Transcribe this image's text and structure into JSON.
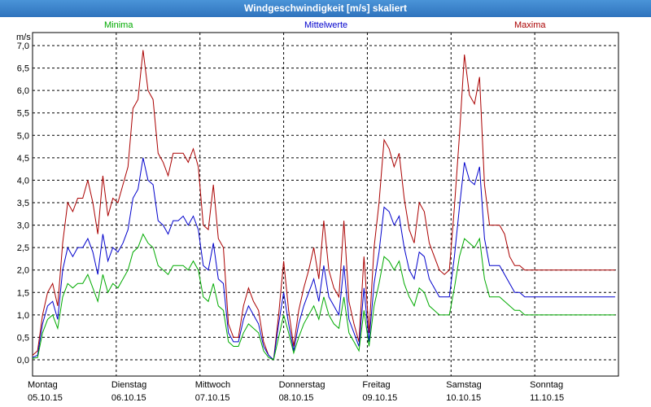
{
  "title": "Windgeschwindigkeit [m/s] skaliert",
  "legend": [
    {
      "label": "Minima",
      "color": "#00aa00"
    },
    {
      "label": "Mittelwerte",
      "color": "#0000cc"
    },
    {
      "label": "Maxima",
      "color": "#aa0000"
    }
  ],
  "colors": {
    "titlebar": "#3a82c9",
    "grid": "#000000"
  },
  "chart_data": {
    "type": "line",
    "ylabel": "m/s",
    "ylim": [
      0,
      7.0
    ],
    "yticks": [
      "0,0",
      "0,5",
      "1,0",
      "1,5",
      "2,0",
      "2,5",
      "3,0",
      "3,5",
      "4,0",
      "4,5",
      "5,0",
      "5,5",
      "6,0",
      "6,5",
      "7,0"
    ],
    "xlim": [
      0,
      7
    ],
    "xticks": [
      {
        "day": "Montag",
        "date": "05.10.15"
      },
      {
        "day": "Dienstag",
        "date": "06.10.15"
      },
      {
        "day": "Mittwoch",
        "date": "07.10.15"
      },
      {
        "day": "Donnerstag",
        "date": "08.10.15"
      },
      {
        "day": "Freitag",
        "date": "09.10.15"
      },
      {
        "day": "Samstag",
        "date": "10.10.15"
      },
      {
        "day": "Sonntag",
        "date": "11.10.15"
      }
    ],
    "grid": true,
    "x": [
      0,
      0.06,
      0.12,
      0.18,
      0.24,
      0.3,
      0.36,
      0.42,
      0.48,
      0.54,
      0.6,
      0.66,
      0.72,
      0.78,
      0.84,
      0.9,
      0.96,
      1.02,
      1.08,
      1.14,
      1.2,
      1.26,
      1.32,
      1.38,
      1.44,
      1.5,
      1.56,
      1.62,
      1.68,
      1.74,
      1.8,
      1.86,
      1.92,
      1.98,
      2.04,
      2.1,
      2.16,
      2.22,
      2.28,
      2.34,
      2.4,
      2.46,
      2.52,
      2.58,
      2.64,
      2.7,
      2.76,
      2.82,
      2.88,
      2.94,
      3.0,
      3.06,
      3.12,
      3.18,
      3.24,
      3.3,
      3.36,
      3.42,
      3.48,
      3.54,
      3.6,
      3.66,
      3.72,
      3.78,
      3.84,
      3.9,
      3.96,
      4.02,
      4.08,
      4.14,
      4.2,
      4.26,
      4.32,
      4.38,
      4.44,
      4.5,
      4.56,
      4.62,
      4.68,
      4.74,
      4.8,
      4.86,
      4.92,
      4.98,
      5.04,
      5.1,
      5.16,
      5.22,
      5.28,
      5.34,
      5.4,
      5.46,
      5.52,
      5.58,
      5.64,
      5.7,
      5.76,
      5.82,
      5.88,
      5.94,
      6.0,
      6.06,
      6.12,
      6.18,
      6.24,
      6.3,
      6.36,
      6.42,
      6.48,
      6.54,
      6.6,
      6.66,
      6.72,
      6.78,
      6.84,
      6.9,
      6.96
    ],
    "series": [
      {
        "name": "Maxima",
        "values": [
          0.1,
          0.2,
          1.0,
          1.5,
          1.7,
          1.2,
          2.6,
          3.5,
          3.3,
          3.6,
          3.6,
          4.0,
          3.5,
          2.8,
          4.1,
          3.2,
          3.6,
          3.5,
          3.9,
          4.3,
          5.6,
          5.8,
          6.9,
          6.0,
          5.8,
          4.6,
          4.4,
          4.1,
          4.6,
          4.6,
          4.6,
          4.4,
          4.7,
          4.3,
          3.0,
          2.9,
          3.9,
          2.7,
          2.5,
          0.8,
          0.5,
          0.5,
          1.2,
          1.6,
          1.3,
          1.1,
          0.4,
          0.1,
          0.0,
          1.0,
          2.2,
          1.1,
          0.3,
          1.1,
          1.6,
          2.0,
          2.5,
          1.8,
          3.1,
          2.0,
          1.6,
          1.4,
          3.1,
          1.3,
          0.8,
          0.4,
          2.3,
          0.6,
          2.5,
          3.5,
          4.9,
          4.7,
          4.3,
          4.6,
          3.6,
          2.9,
          2.6,
          3.5,
          3.3,
          2.6,
          2.3,
          2.0,
          1.9,
          2.0,
          3.4,
          5.0,
          6.8,
          5.9,
          5.7,
          6.3,
          3.9,
          3.0,
          3.0,
          3.0,
          2.8,
          2.3,
          2.1,
          2.1,
          2.0,
          2.0,
          2.0,
          2.0,
          2.0,
          2.0,
          2.0,
          2.0,
          2.0,
          2.0,
          2.0,
          2.0,
          2.0,
          2.0,
          2.0,
          2.0,
          2.0,
          2.0,
          2.0
        ]
      },
      {
        "name": "Mittelwerte",
        "values": [
          0.05,
          0.1,
          0.8,
          1.2,
          1.3,
          0.9,
          2.0,
          2.5,
          2.3,
          2.5,
          2.5,
          2.7,
          2.4,
          1.9,
          2.8,
          2.2,
          2.5,
          2.4,
          2.6,
          2.9,
          3.6,
          3.8,
          4.5,
          4.0,
          3.9,
          3.1,
          3.0,
          2.8,
          3.1,
          3.1,
          3.2,
          3.0,
          3.2,
          2.9,
          2.1,
          2.0,
          2.6,
          1.8,
          1.7,
          0.6,
          0.4,
          0.4,
          0.9,
          1.2,
          1.0,
          0.8,
          0.3,
          0.1,
          0.0,
          0.8,
          1.5,
          0.8,
          0.2,
          0.8,
          1.2,
          1.5,
          1.8,
          1.3,
          2.1,
          1.4,
          1.2,
          1.0,
          2.1,
          0.9,
          0.6,
          0.3,
          1.6,
          0.4,
          1.7,
          2.4,
          3.4,
          3.3,
          3.0,
          3.2,
          2.5,
          2.0,
          1.8,
          2.4,
          2.3,
          1.8,
          1.6,
          1.4,
          1.4,
          1.4,
          2.3,
          3.4,
          4.4,
          4.0,
          3.9,
          4.3,
          2.7,
          2.1,
          2.1,
          2.1,
          1.9,
          1.7,
          1.5,
          1.5,
          1.4,
          1.4,
          1.4,
          1.4,
          1.4,
          1.4,
          1.4,
          1.4,
          1.4,
          1.4,
          1.4,
          1.4,
          1.4,
          1.4,
          1.4,
          1.4,
          1.4,
          1.4,
          1.4
        ]
      },
      {
        "name": "Minima",
        "values": [
          0.03,
          0.05,
          0.6,
          0.9,
          1.0,
          0.7,
          1.4,
          1.7,
          1.6,
          1.7,
          1.7,
          1.9,
          1.6,
          1.3,
          1.9,
          1.5,
          1.7,
          1.6,
          1.8,
          2.0,
          2.4,
          2.5,
          2.8,
          2.6,
          2.5,
          2.1,
          2.0,
          1.9,
          2.1,
          2.1,
          2.1,
          2.0,
          2.2,
          2.0,
          1.4,
          1.3,
          1.7,
          1.2,
          1.1,
          0.4,
          0.3,
          0.3,
          0.6,
          0.8,
          0.7,
          0.6,
          0.2,
          0.05,
          0.0,
          0.5,
          1.0,
          0.6,
          0.15,
          0.5,
          0.8,
          1.0,
          1.2,
          0.9,
          1.4,
          1.0,
          0.8,
          0.7,
          1.4,
          0.6,
          0.4,
          0.2,
          1.1,
          0.3,
          1.2,
          1.7,
          2.3,
          2.2,
          2.0,
          2.2,
          1.7,
          1.4,
          1.2,
          1.6,
          1.5,
          1.2,
          1.1,
          1.0,
          1.0,
          1.0,
          1.6,
          2.3,
          2.7,
          2.6,
          2.5,
          2.7,
          1.8,
          1.4,
          1.4,
          1.4,
          1.3,
          1.2,
          1.1,
          1.1,
          1.0,
          1.0,
          1.0,
          1.0,
          1.0,
          1.0,
          1.0,
          1.0,
          1.0,
          1.0,
          1.0,
          1.0,
          1.0,
          1.0,
          1.0,
          1.0,
          1.0,
          1.0,
          1.0
        ]
      }
    ]
  }
}
